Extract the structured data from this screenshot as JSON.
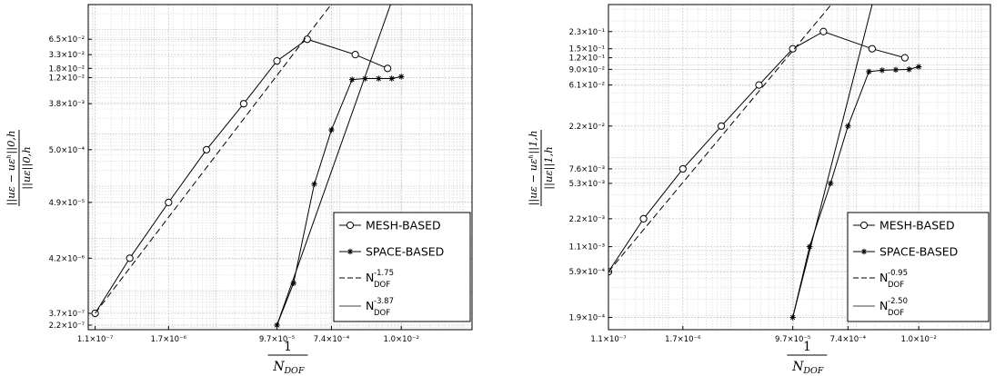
{
  "chart_data": [
    {
      "type": "line",
      "log_x": true,
      "log_y": true,
      "xlim": [
        8.5e-08,
        0.14
      ],
      "ylim": [
        1.8e-07,
        0.3
      ],
      "grid": true,
      "legend_position": "bottom-right",
      "xlabel": "1/N_DOF",
      "ylabel": "||u_ε − u_ε^h||_{0,h} / ||u_ε||_{0,h}",
      "x_ticks": [
        {
          "v": 1.1e-07,
          "label": "1.1×10⁻⁷"
        },
        {
          "v": 1.7e-06,
          "label": "1.7×10⁻⁶"
        },
        {
          "v": 9.7e-05,
          "label": "9.7×10⁻⁵"
        },
        {
          "v": 0.00074,
          "label": "7.4×10⁻⁴"
        },
        {
          "v": 0.01,
          "label": "1.0×10⁻²"
        }
      ],
      "y_ticks": [
        {
          "v": 0.065,
          "label": "6.5×10⁻²"
        },
        {
          "v": 0.033,
          "label": "3.3×10⁻²"
        },
        {
          "v": 0.018,
          "label": "1.8×10⁻²"
        },
        {
          "v": 0.012,
          "label": "1.2×10⁻²"
        },
        {
          "v": 0.0038,
          "label": "3.8×10⁻³"
        },
        {
          "v": 0.0005,
          "label": "5.0×10⁻⁴"
        },
        {
          "v": 4.9e-05,
          "label": "4.9×10⁻⁵"
        },
        {
          "v": 4.2e-06,
          "label": "4.2×10⁻⁶"
        },
        {
          "v": 3.7e-07,
          "label": "3.7×10⁻⁷"
        },
        {
          "v": 2.2e-07,
          "label": "2.2×10⁻⁷"
        }
      ],
      "series": [
        {
          "name": "MESH-BASED",
          "marker": "circle",
          "x": [
            1.1e-07,
            4e-07,
            1.7e-06,
            7e-06,
            2.8e-05,
            9.7e-05,
            0.0003,
            0.0018,
            0.006
          ],
          "y": [
            3.7e-07,
            4.2e-06,
            4.9e-05,
            0.0005,
            0.0038,
            0.025,
            0.065,
            0.033,
            0.018
          ]
        },
        {
          "name": "SPACE-BASED",
          "marker": "star",
          "x": [
            9.7e-05,
            0.00018,
            0.00039,
            0.00074,
            0.0016,
            0.0026,
            0.0043,
            0.007,
            0.01
          ],
          "y": [
            2.2e-07,
            1.4e-06,
            0.00011,
            0.0012,
            0.011,
            0.0115,
            0.0115,
            0.0115,
            0.0125
          ]
        },
        {
          "name": "N_DOF^-1.75",
          "style": "dashed",
          "x": [
            1.1e-07,
            0.00073
          ],
          "y": [
            3.7e-07,
            0.3
          ]
        },
        {
          "name": "N_DOF^-3.87",
          "style": "solid",
          "x": [
            9.7e-05,
            0.0067
          ],
          "y": [
            2.2e-07,
            0.3
          ]
        }
      ],
      "legend": [
        {
          "kind": "circle",
          "text": "MESH-BASED"
        },
        {
          "kind": "star",
          "text": "SPACE-BASED"
        },
        {
          "kind": "dashed",
          "text": "N",
          "sub": "DOF",
          "sup": "-1.75"
        },
        {
          "kind": "solid",
          "text": "N",
          "sub": "DOF",
          "sup": "-3.87"
        }
      ]
    },
    {
      "type": "line",
      "log_x": true,
      "log_y": true,
      "xlim": [
        1.1e-07,
        0.14
      ],
      "ylim": [
        0.00014,
        0.45
      ],
      "grid": true,
      "legend_position": "bottom-right",
      "xlabel": "1/N_DOF",
      "ylabel": "||u_ε − u_ε^h||_{1,h} / ||u_ε||_{1,h}",
      "x_ticks": [
        {
          "v": 1.1e-07,
          "label": "1.1×10⁻⁷"
        },
        {
          "v": 1.7e-06,
          "label": "1.7×10⁻⁶"
        },
        {
          "v": 9.7e-05,
          "label": "9.7×10⁻⁵"
        },
        {
          "v": 0.00074,
          "label": "7.4×10⁻⁴"
        },
        {
          "v": 0.01,
          "label": "1.0×10⁻²"
        }
      ],
      "y_ticks": [
        {
          "v": 0.23,
          "label": "2.3×10⁻¹"
        },
        {
          "v": 0.15,
          "label": "1.5×10⁻¹"
        },
        {
          "v": 0.12,
          "label": "1.2×10⁻¹"
        },
        {
          "v": 0.09,
          "label": "9.0×10⁻²"
        },
        {
          "v": 0.061,
          "label": "6.1×10⁻²"
        },
        {
          "v": 0.022,
          "label": "2.2×10⁻²"
        },
        {
          "v": 0.0076,
          "label": "7.6×10⁻³"
        },
        {
          "v": 0.0053,
          "label": "5.3×10⁻³"
        },
        {
          "v": 0.0022,
          "label": "2.2×10⁻³"
        },
        {
          "v": 0.0011,
          "label": "1.1×10⁻³"
        },
        {
          "v": 0.00059,
          "label": "5.9×10⁻⁴"
        },
        {
          "v": 0.00019,
          "label": "1.9×10⁻⁴"
        }
      ],
      "series": [
        {
          "name": "MESH-BASED",
          "marker": "circle",
          "x": [
            1.1e-07,
            4e-07,
            1.7e-06,
            7e-06,
            2.8e-05,
            9.7e-05,
            0.0003,
            0.0018,
            0.006
          ],
          "y": [
            0.00059,
            0.0022,
            0.0076,
            0.022,
            0.061,
            0.15,
            0.23,
            0.15,
            0.12
          ]
        },
        {
          "name": "SPACE-BASED",
          "marker": "star",
          "x": [
            9.7e-05,
            0.00018,
            0.00039,
            0.00074,
            0.0016,
            0.0026,
            0.0043,
            0.007,
            0.01
          ],
          "y": [
            0.00019,
            0.0011,
            0.0053,
            0.022,
            0.085,
            0.088,
            0.089,
            0.09,
            0.096
          ]
        },
        {
          "name": "N_DOF^-0.95",
          "style": "dashed",
          "x": [
            1.1e-07,
            0.0004
          ],
          "y": [
            0.00059,
            0.45
          ]
        },
        {
          "name": "N_DOF^-2.50",
          "style": "solid",
          "x": [
            9.7e-05,
            0.0018
          ],
          "y": [
            0.00019,
            0.45
          ]
        }
      ],
      "legend": [
        {
          "kind": "circle",
          "text": "MESH-BASED"
        },
        {
          "kind": "star",
          "text": "SPACE-BASED"
        },
        {
          "kind": "dashed",
          "text": "N",
          "sub": "DOF",
          "sup": "-0.95"
        },
        {
          "kind": "solid",
          "text": "N",
          "sub": "DOF",
          "sup": "-2.50"
        }
      ]
    }
  ]
}
